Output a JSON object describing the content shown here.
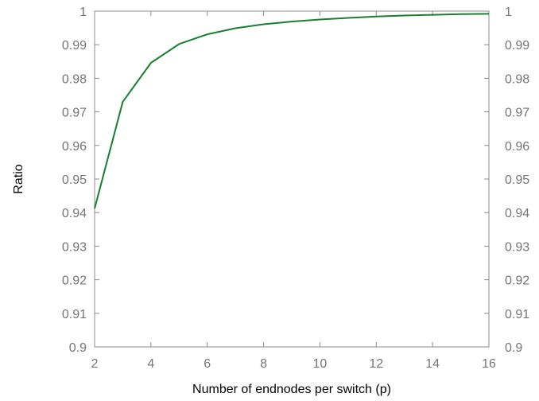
{
  "chart_data": {
    "type": "line",
    "title": "",
    "xlabel": "Number of endnodes per switch (p)",
    "ylabel": "Ratio",
    "xlim": [
      2,
      16
    ],
    "ylim": [
      0.9,
      1.0
    ],
    "x_ticks": [
      "2",
      "4",
      "6",
      "8",
      "10",
      "12",
      "14",
      "16"
    ],
    "y_ticks": [
      "0.9",
      "0.91",
      "0.92",
      "0.93",
      "0.94",
      "0.95",
      "0.96",
      "0.97",
      "0.98",
      "0.99",
      "1"
    ],
    "right_y_ticks": [
      "0.9",
      "0.91",
      "0.92",
      "0.93",
      "0.94",
      "0.95",
      "0.96",
      "0.97",
      "0.98",
      "0.99",
      "1"
    ],
    "grid": false,
    "series": [
      {
        "color": "#1a7f2e",
        "x": [
          2,
          3,
          4,
          5,
          6,
          7,
          8,
          9,
          10,
          11,
          12,
          13,
          14,
          15,
          16
        ],
        "y": [
          0.9412,
          0.973,
          0.9846,
          0.9902,
          0.9931,
          0.9949,
          0.9961,
          0.9969,
          0.9975,
          0.998,
          0.9984,
          0.9987,
          0.9989,
          0.9991,
          0.9992
        ]
      }
    ]
  }
}
